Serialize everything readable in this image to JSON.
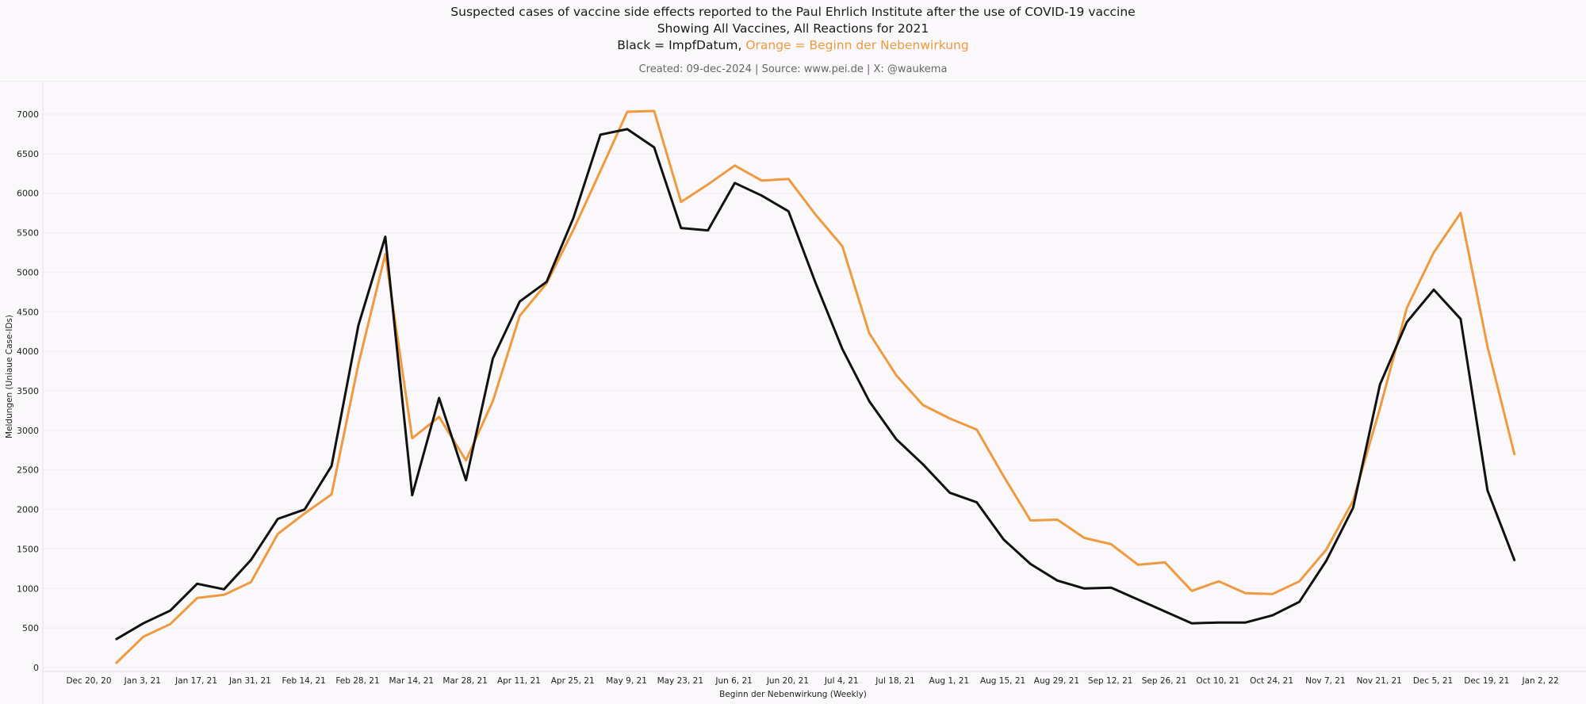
{
  "header": {
    "title": "Suspected cases of vaccine side effects reported to the Paul Ehrlich Institute after the use of COVID-19 vaccine",
    "subtitle": "Showing All Vaccines, All Reactions for 2021",
    "legend_black": "Black = ImpfDatum, ",
    "legend_orange": "Orange = Beginn der Nebenwirkung",
    "meta": "Created: 09-dec-2024 | Source: www.pei.de | X: @waukema"
  },
  "chart_data": {
    "type": "line",
    "xlabel": "Beginn der Nebenwirkung (Weekly)",
    "ylabel": "Meldungen (Uniaue Case-IDs)",
    "ylim": [
      0,
      7000
    ],
    "yticks": [
      0,
      500,
      1000,
      1500,
      2000,
      2500,
      3000,
      3500,
      4000,
      4500,
      5000,
      5500,
      6000,
      6500,
      7000
    ],
    "xtick_labels": [
      "Dec 20, 20",
      "Jan 3, 21",
      "Jan 17, 21",
      "Jan 31, 21",
      "Feb 14, 21",
      "Feb 28, 21",
      "Mar 14, 21",
      "Mar 28, 21",
      "Apr 11, 21",
      "Apr 25, 21",
      "May 9, 21",
      "May 23, 21",
      "Jun 6, 21",
      "Jun 20, 21",
      "Jul 4, 21",
      "Jul 18, 21",
      "Aug 1, 21",
      "Aug 15, 21",
      "Aug 29, 21",
      "Sep 12, 21",
      "Sep 26, 21",
      "Oct 10, 21",
      "Oct 24, 21",
      "Nov 7, 21",
      "Nov 21, 21",
      "Dec 5, 21",
      "Dec 19, 21",
      "Jan 2, 22"
    ],
    "x": [
      "Dec 27, 20",
      "Jan 3, 21",
      "Jan 10, 21",
      "Jan 17, 21",
      "Jan 24, 21",
      "Jan 31, 21",
      "Feb 7, 21",
      "Feb 14, 21",
      "Feb 21, 21",
      "Feb 28, 21",
      "Mar 7, 21",
      "Mar 14, 21",
      "Mar 21, 21",
      "Mar 28, 21",
      "Apr 4, 21",
      "Apr 11, 21",
      "Apr 18, 21",
      "Apr 25, 21",
      "May 2, 21",
      "May 9, 21",
      "May 16, 21",
      "May 23, 21",
      "May 30, 21",
      "Jun 6, 21",
      "Jun 13, 21",
      "Jun 20, 21",
      "Jun 27, 21",
      "Jul 4, 21",
      "Jul 11, 21",
      "Jul 18, 21",
      "Jul 25, 21",
      "Aug 1, 21",
      "Aug 8, 21",
      "Aug 15, 21",
      "Aug 22, 21",
      "Aug 29, 21",
      "Sep 5, 21",
      "Sep 12, 21",
      "Sep 19, 21",
      "Sep 26, 21",
      "Oct 3, 21",
      "Oct 10, 21",
      "Oct 17, 21",
      "Oct 24, 21",
      "Oct 31, 21",
      "Nov 7, 21",
      "Nov 14, 21",
      "Nov 21, 21",
      "Nov 28, 21",
      "Dec 5, 21",
      "Dec 12, 21",
      "Dec 19, 21",
      "Dec 26, 21"
    ],
    "series": [
      {
        "name": "ImpfDatum",
        "color": "#111111",
        "values": [
          360,
          560,
          720,
          1060,
          990,
          1360,
          1880,
          2000,
          2550,
          4330,
          5450,
          2180,
          3410,
          2370,
          3910,
          4630,
          4880,
          5690,
          6740,
          6810,
          6580,
          5560,
          5530,
          6130,
          5970,
          5770,
          4870,
          4030,
          3370,
          2890,
          2570,
          2210,
          2090,
          1620,
          1310,
          1100,
          1000,
          1010,
          860,
          710,
          560,
          570,
          570,
          660,
          830,
          1350,
          2020,
          3580,
          4370,
          4780,
          4410,
          2240,
          1360
        ]
      },
      {
        "name": "Beginn der Nebenwirkung",
        "color": "#ef9a3e",
        "values": [
          60,
          390,
          550,
          880,
          920,
          1080,
          1690,
          1950,
          2190,
          3840,
          5230,
          2900,
          3170,
          2620,
          3370,
          4450,
          4860,
          5540,
          6280,
          7030,
          7040,
          5890,
          6110,
          6350,
          6160,
          6180,
          5730,
          5330,
          4230,
          3700,
          3320,
          3150,
          3010,
          2420,
          1860,
          1870,
          1640,
          1560,
          1300,
          1330,
          970,
          1090,
          940,
          930,
          1090,
          1490,
          2110,
          3280,
          4550,
          5250,
          5750,
          4060,
          2700
        ]
      }
    ]
  }
}
